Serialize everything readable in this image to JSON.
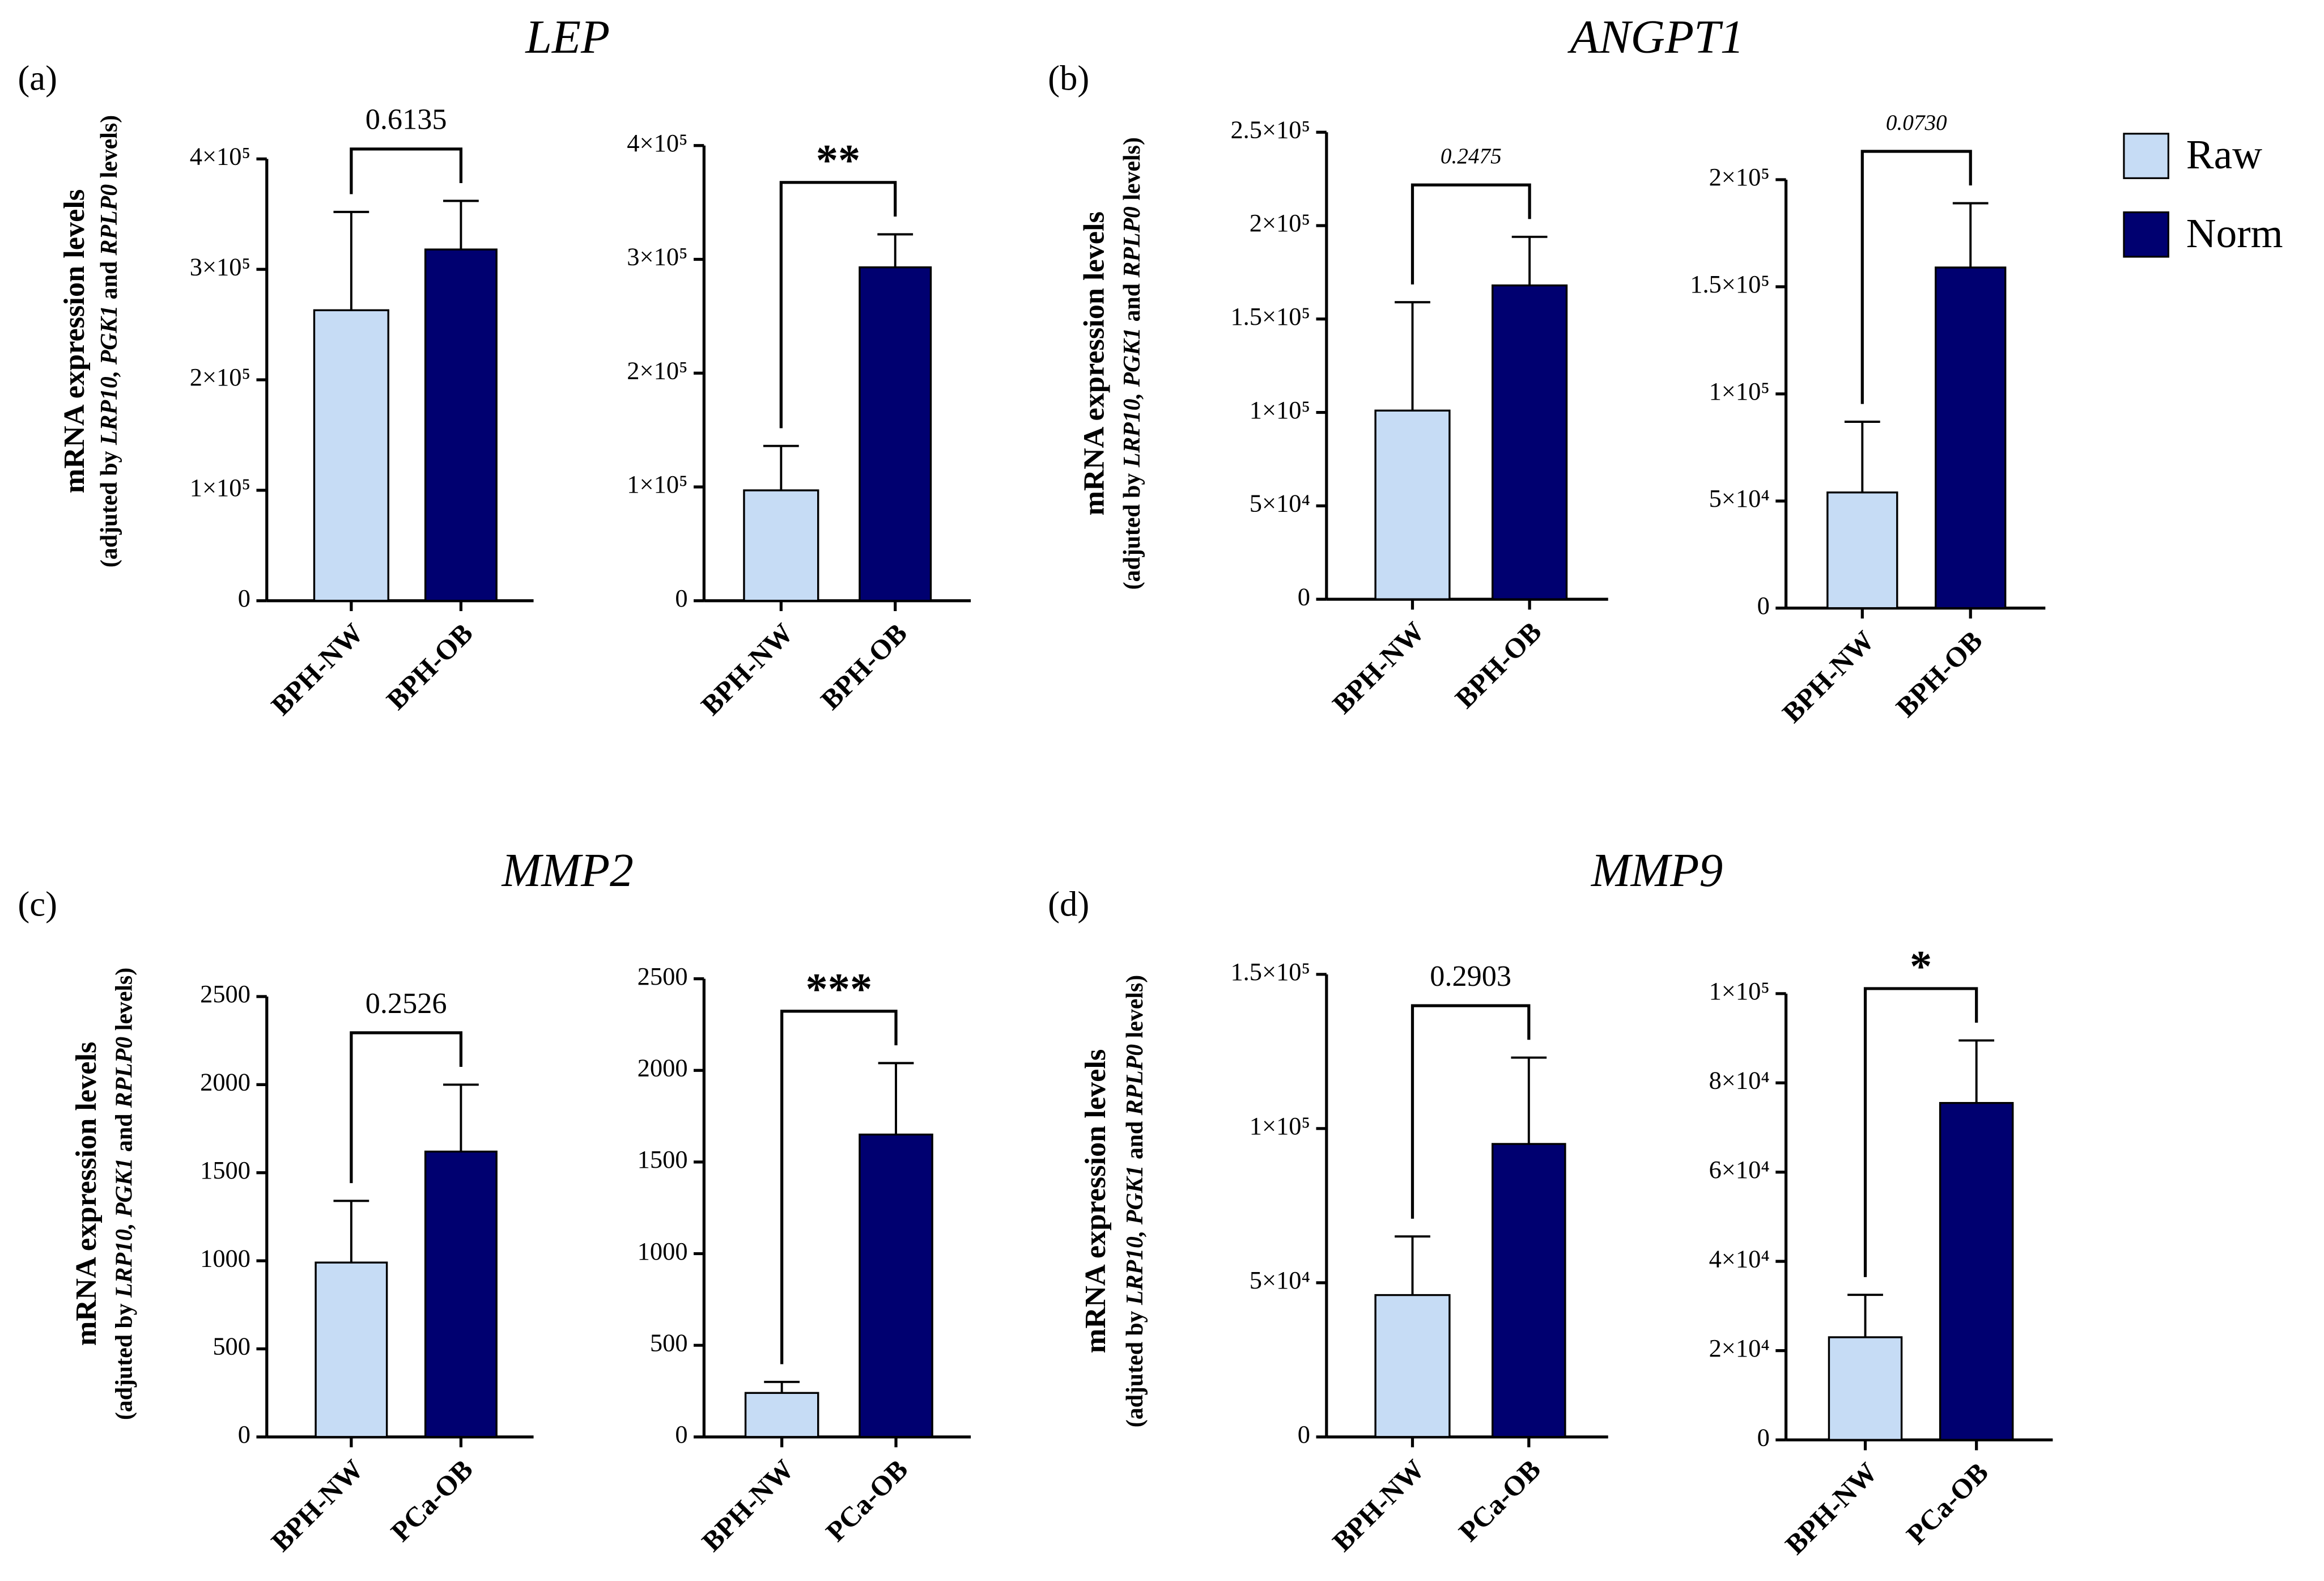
{
  "legend": [
    {
      "name": "Raw",
      "color": "#c6dcf5"
    },
    {
      "name": "Norm",
      "color": "#000070"
    }
  ],
  "panels": [
    {
      "label": "(a)",
      "title": "LEP",
      "ylabel": "mRNA expression levels",
      "ylabel_note": [
        "(adjuted by ",
        "LRP10, PGK1",
        " and ",
        "RPLP0",
        " levels)"
      ]
    },
    {
      "label": "(b)",
      "title": "ANGPT1",
      "ylabel": "mRNA expression levels",
      "ylabel_note": [
        "(adjuted by ",
        "LRP10, PGK1",
        " and ",
        "RPLP0",
        " levels)"
      ]
    },
    {
      "label": "(c)",
      "title": "MMP2",
      "ylabel": "mRNA expression levels",
      "ylabel_note": [
        "(adjuted by ",
        "LRP10, PGK1",
        " and ",
        "RPLP0",
        " levels)"
      ]
    },
    {
      "label": "(d)",
      "title": "MMP9",
      "ylabel": "mRNA expression levels",
      "ylabel_note": [
        "(adjuted by ",
        "LRP10, PGK1",
        " and ",
        "RPLP0",
        " levels)"
      ]
    }
  ],
  "chart_data": [
    {
      "type": "bar",
      "categories": [
        "BPH-NW",
        "BPH-OB"
      ],
      "values": [
        263000,
        318000
      ],
      "errors": [
        89000,
        44000
      ],
      "colors": [
        "#c6dcf5",
        "#000070"
      ],
      "annotation": "0.6135",
      "annotation_italic": false,
      "ylim": [
        0,
        400000
      ],
      "yticks": [
        0,
        {
          "value": 100000,
          "label": "1×10⁵"
        },
        {
          "value": 200000,
          "label": "2×10⁵"
        },
        {
          "value": 300000,
          "label": "3×10⁵"
        },
        {
          "value": 400000,
          "label": "4×10⁵"
        }
      ]
    },
    {
      "type": "bar",
      "categories": [
        "BPH-NW",
        "BPH-OB"
      ],
      "values": [
        97000,
        293000
      ],
      "errors": [
        39000,
        29000
      ],
      "colors": [
        "#c6dcf5",
        "#000070"
      ],
      "annotation": "**",
      "annotation_italic": false,
      "ylim": [
        0,
        400000
      ],
      "yticks": [
        0,
        {
          "value": 100000,
          "label": "1×10⁵"
        },
        {
          "value": 200000,
          "label": "2×10⁵"
        },
        {
          "value": 300000,
          "label": "3×10⁵"
        },
        {
          "value": 400000,
          "label": "4×10⁵"
        }
      ]
    },
    {
      "type": "bar",
      "categories": [
        "BPH-NW",
        "BPH-OB"
      ],
      "values": [
        101000,
        168000
      ],
      "errors": [
        58000,
        26000
      ],
      "colors": [
        "#c6dcf5",
        "#000070"
      ],
      "annotation": "0.2475",
      "annotation_italic": true,
      "ylim": [
        0,
        250000
      ],
      "yticks": [
        0,
        {
          "value": 50000,
          "label": "5×10⁴"
        },
        {
          "value": 100000,
          "label": "1×10⁵"
        },
        {
          "value": 150000,
          "label": "1.5×10⁵"
        },
        {
          "value": 200000,
          "label": "2×10⁵"
        },
        {
          "value": 250000,
          "label": "2.5×10⁵"
        }
      ]
    },
    {
      "type": "bar",
      "categories": [
        "BPH-NW",
        "BPH-OB"
      ],
      "values": [
        54000,
        159000
      ],
      "errors": [
        33000,
        30000
      ],
      "colors": [
        "#c6dcf5",
        "#000070"
      ],
      "annotation": "0.0730",
      "annotation_italic": true,
      "ylim": [
        0,
        200000
      ],
      "yticks": [
        0,
        {
          "value": 50000,
          "label": "5×10⁴"
        },
        {
          "value": 100000,
          "label": "1×10⁵"
        },
        {
          "value": 150000,
          "label": "1.5×10⁵"
        },
        {
          "value": 200000,
          "label": "2×10⁵"
        }
      ]
    },
    {
      "type": "bar",
      "categories": [
        "BPH-NW",
        "PCa-OB"
      ],
      "values": [
        990,
        1620
      ],
      "errors": [
        350,
        380
      ],
      "colors": [
        "#c6dcf5",
        "#000070"
      ],
      "annotation": "0.2526",
      "annotation_italic": false,
      "ylim": [
        0,
        2500
      ],
      "yticks": [
        0,
        500,
        1000,
        1500,
        2000,
        2500
      ]
    },
    {
      "type": "bar",
      "categories": [
        "BPH-NW",
        "PCa-OB"
      ],
      "values": [
        240,
        1650
      ],
      "errors": [
        60,
        390
      ],
      "colors": [
        "#c6dcf5",
        "#000070"
      ],
      "annotation": "***",
      "annotation_italic": false,
      "ylim": [
        0,
        2500
      ],
      "yticks": [
        0,
        500,
        1000,
        1500,
        2000,
        2500
      ]
    },
    {
      "type": "bar",
      "categories": [
        "BPH-NW",
        "PCa-OB"
      ],
      "values": [
        46000,
        95000
      ],
      "errors": [
        19000,
        28000
      ],
      "colors": [
        "#c6dcf5",
        "#000070"
      ],
      "annotation": "0.2903",
      "annotation_italic": false,
      "ylim": [
        0,
        150000
      ],
      "yticks": [
        0,
        {
          "value": 50000,
          "label": "5×10⁴"
        },
        {
          "value": 100000,
          "label": "1×10⁵"
        },
        {
          "value": 150000,
          "label": "1.5×10⁵"
        }
      ]
    },
    {
      "type": "bar",
      "categories": [
        "BPH-NW",
        "PCa-OB"
      ],
      "values": [
        23000,
        75500
      ],
      "errors": [
        9500,
        14000
      ],
      "colors": [
        "#c6dcf5",
        "#000070"
      ],
      "annotation": "*",
      "annotation_italic": false,
      "ylim": [
        0,
        100000
      ],
      "yticks": [
        0,
        {
          "value": 20000,
          "label": "2×10⁴"
        },
        {
          "value": 40000,
          "label": "4×10⁴"
        },
        {
          "value": 60000,
          "label": "6×10⁴"
        },
        {
          "value": 80000,
          "label": "8×10⁴"
        },
        {
          "value": 100000,
          "label": "1×10⁵"
        }
      ]
    }
  ]
}
